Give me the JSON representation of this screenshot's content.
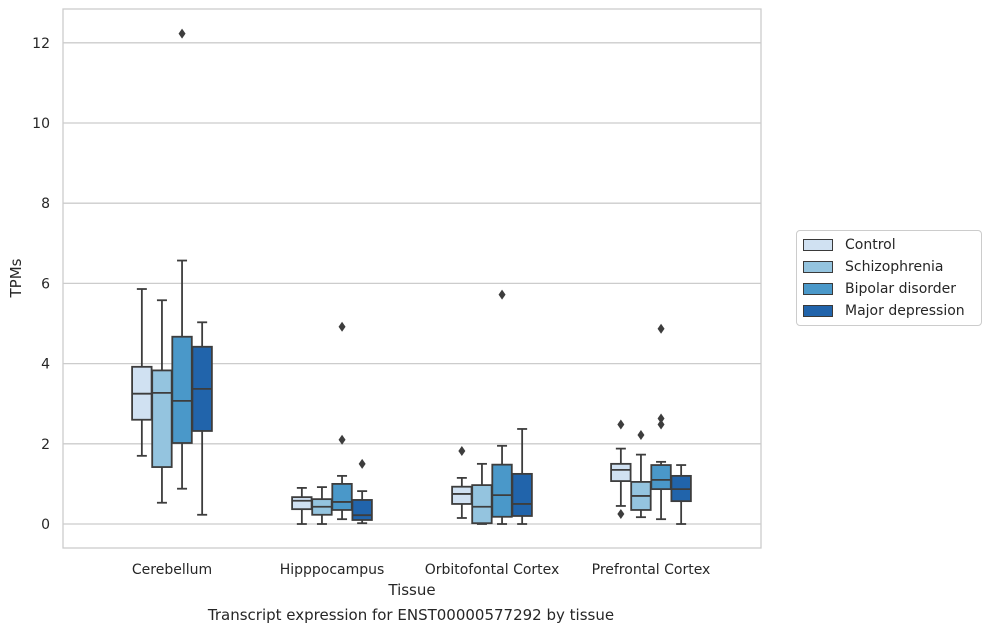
{
  "caption": "Transcript expression for ENST00000577292 by tissue",
  "chart_data": {
    "type": "box",
    "xlabel": "Tissue",
    "ylabel": "TPMs",
    "ylim": [
      -0.6,
      12.85
    ],
    "yticks": [
      0,
      2,
      4,
      6,
      8,
      10,
      12
    ],
    "categories": [
      "Cerebellum",
      "Hipppocampus",
      "Orbitofontal Cortex",
      "Prefrontal Cortex"
    ],
    "grid": "horizontal",
    "legend_position": "right",
    "series": [
      {
        "name": "Control",
        "color": "#d0e1f2",
        "boxes": [
          {
            "whislo": 1.7,
            "q1": 2.6,
            "med": 3.25,
            "q3": 3.92,
            "whishi": 5.86,
            "fliers": []
          },
          {
            "whislo": 0.0,
            "q1": 0.37,
            "med": 0.58,
            "q3": 0.67,
            "whishi": 0.9,
            "fliers": []
          },
          {
            "whislo": 0.15,
            "q1": 0.5,
            "med": 0.75,
            "q3": 0.93,
            "whishi": 1.15,
            "fliers": [
              1.82
            ]
          },
          {
            "whislo": 0.45,
            "q1": 1.07,
            "med": 1.35,
            "q3": 1.5,
            "whishi": 1.88,
            "fliers": [
              2.48,
              0.25
            ]
          }
        ]
      },
      {
        "name": "Schizophrenia",
        "color": "#94c4df",
        "boxes": [
          {
            "whislo": 0.53,
            "q1": 1.42,
            "med": 3.27,
            "q3": 3.83,
            "whishi": 5.58,
            "fliers": []
          },
          {
            "whislo": 0.0,
            "q1": 0.23,
            "med": 0.43,
            "q3": 0.62,
            "whishi": 0.92,
            "fliers": []
          },
          {
            "whislo": 0.0,
            "q1": 0.02,
            "med": 0.43,
            "q3": 0.97,
            "whishi": 1.5,
            "fliers": []
          },
          {
            "whislo": 0.17,
            "q1": 0.35,
            "med": 0.7,
            "q3": 1.05,
            "whishi": 1.73,
            "fliers": [
              2.22
            ]
          }
        ]
      },
      {
        "name": "Bipolar disorder",
        "color": "#4a98c9",
        "boxes": [
          {
            "whislo": 0.88,
            "q1": 2.02,
            "med": 3.07,
            "q3": 4.67,
            "whishi": 6.57,
            "fliers": [
              12.23
            ]
          },
          {
            "whislo": 0.12,
            "q1": 0.35,
            "med": 0.55,
            "q3": 1.0,
            "whishi": 1.2,
            "fliers": [
              4.92,
              2.1
            ]
          },
          {
            "whislo": 0.0,
            "q1": 0.18,
            "med": 0.72,
            "q3": 1.48,
            "whishi": 1.95,
            "fliers": [
              5.72
            ]
          },
          {
            "whislo": 0.12,
            "q1": 0.87,
            "med": 1.1,
            "q3": 1.47,
            "whishi": 1.55,
            "fliers": [
              4.87,
              2.63,
              2.48
            ]
          }
        ]
      },
      {
        "name": "Major depression",
        "color": "#2164ab",
        "boxes": [
          {
            "whislo": 0.23,
            "q1": 2.32,
            "med": 3.37,
            "q3": 4.42,
            "whishi": 5.03,
            "fliers": []
          },
          {
            "whislo": 0.02,
            "q1": 0.1,
            "med": 0.22,
            "q3": 0.6,
            "whishi": 0.82,
            "fliers": [
              1.5
            ]
          },
          {
            "whislo": 0.0,
            "q1": 0.2,
            "med": 0.5,
            "q3": 1.25,
            "whishi": 2.37,
            "fliers": []
          },
          {
            "whislo": 0.0,
            "q1": 0.57,
            "med": 0.87,
            "q3": 1.2,
            "whishi": 1.47,
            "fliers": []
          }
        ]
      }
    ]
  }
}
